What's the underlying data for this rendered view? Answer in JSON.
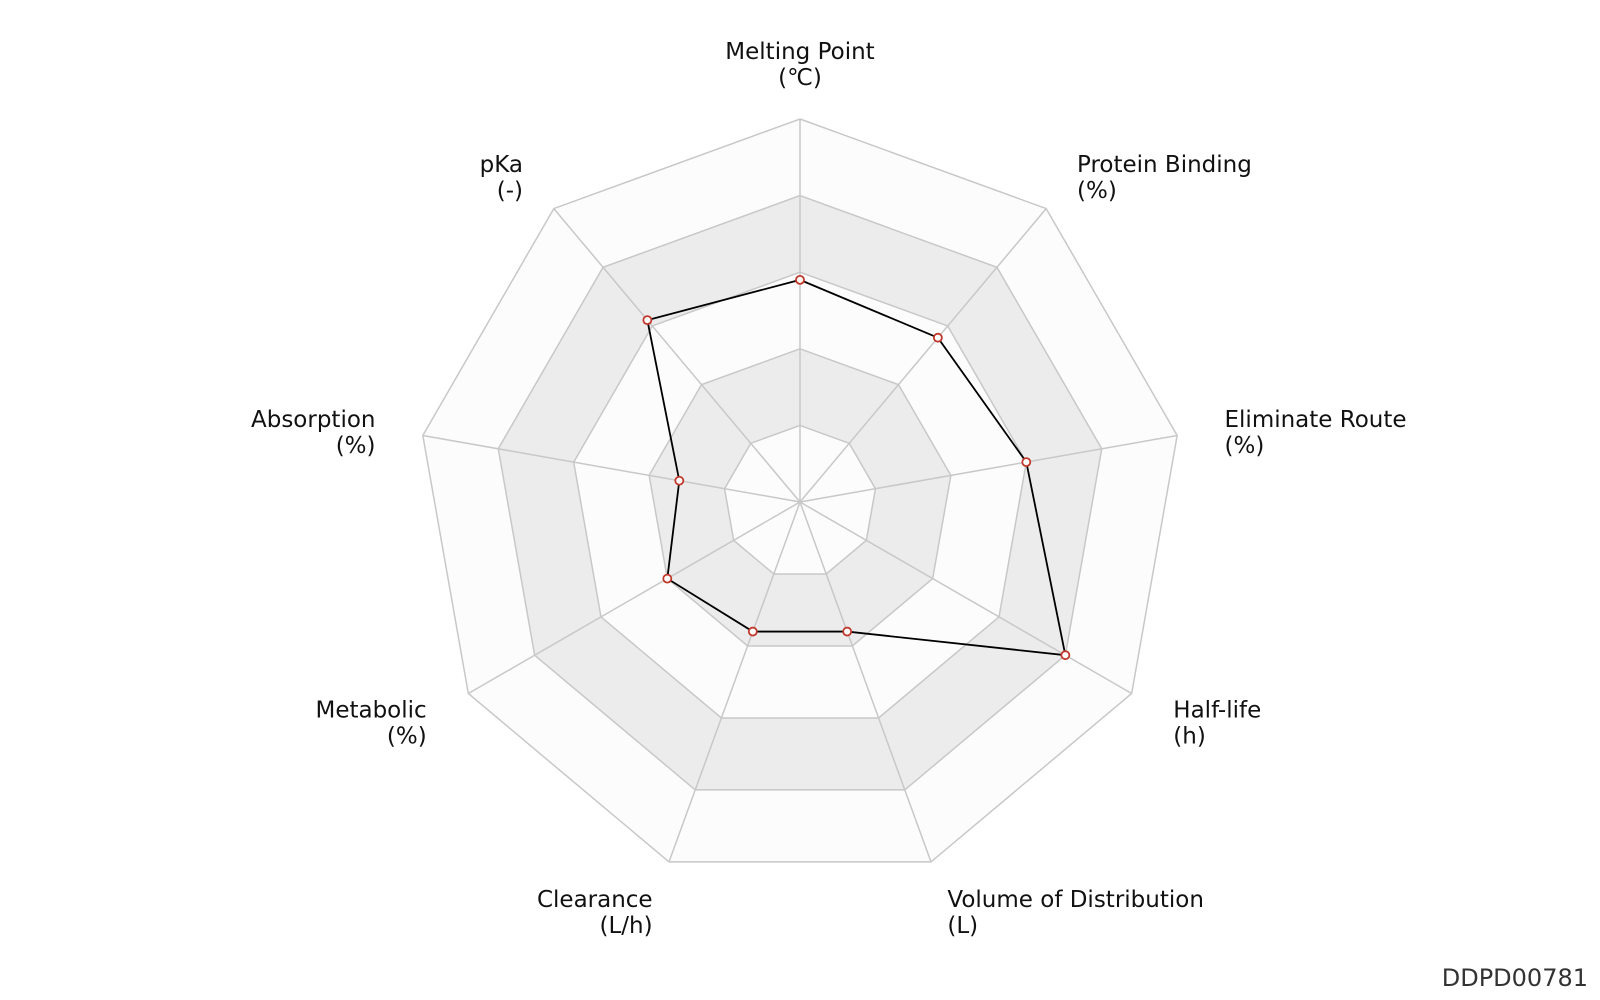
{
  "chart_data": {
    "type": "radar",
    "axes": [
      {
        "name": "Melting Point",
        "unit": "(℃)"
      },
      {
        "name": "Protein Binding",
        "unit": "(%)"
      },
      {
        "name": "Eliminate Route",
        "unit": "(%)"
      },
      {
        "name": "Half-life",
        "unit": "(h)"
      },
      {
        "name": "Volume of Distribution",
        "unit": "(L)"
      },
      {
        "name": "Clearance",
        "unit": "(L/h)"
      },
      {
        "name": "Metabolic",
        "unit": "(%)"
      },
      {
        "name": "Absorption",
        "unit": "(%)"
      },
      {
        "name": "pKa",
        "unit": "(-)"
      }
    ],
    "series": [
      {
        "values": [
          0.58,
          0.56,
          0.6,
          0.8,
          0.36,
          0.36,
          0.4,
          0.32,
          0.62
        ]
      }
    ],
    "rmax": 1,
    "rings": 5,
    "grid": true,
    "colors": {
      "line": "#000000",
      "marker_edge": "#c0392b",
      "marker_fill": "#ffffff",
      "band_light": "#fcfcfc",
      "band_dark": "#ececec",
      "grid": "#c8c8c8"
    }
  },
  "watermark": "DDPD00781"
}
